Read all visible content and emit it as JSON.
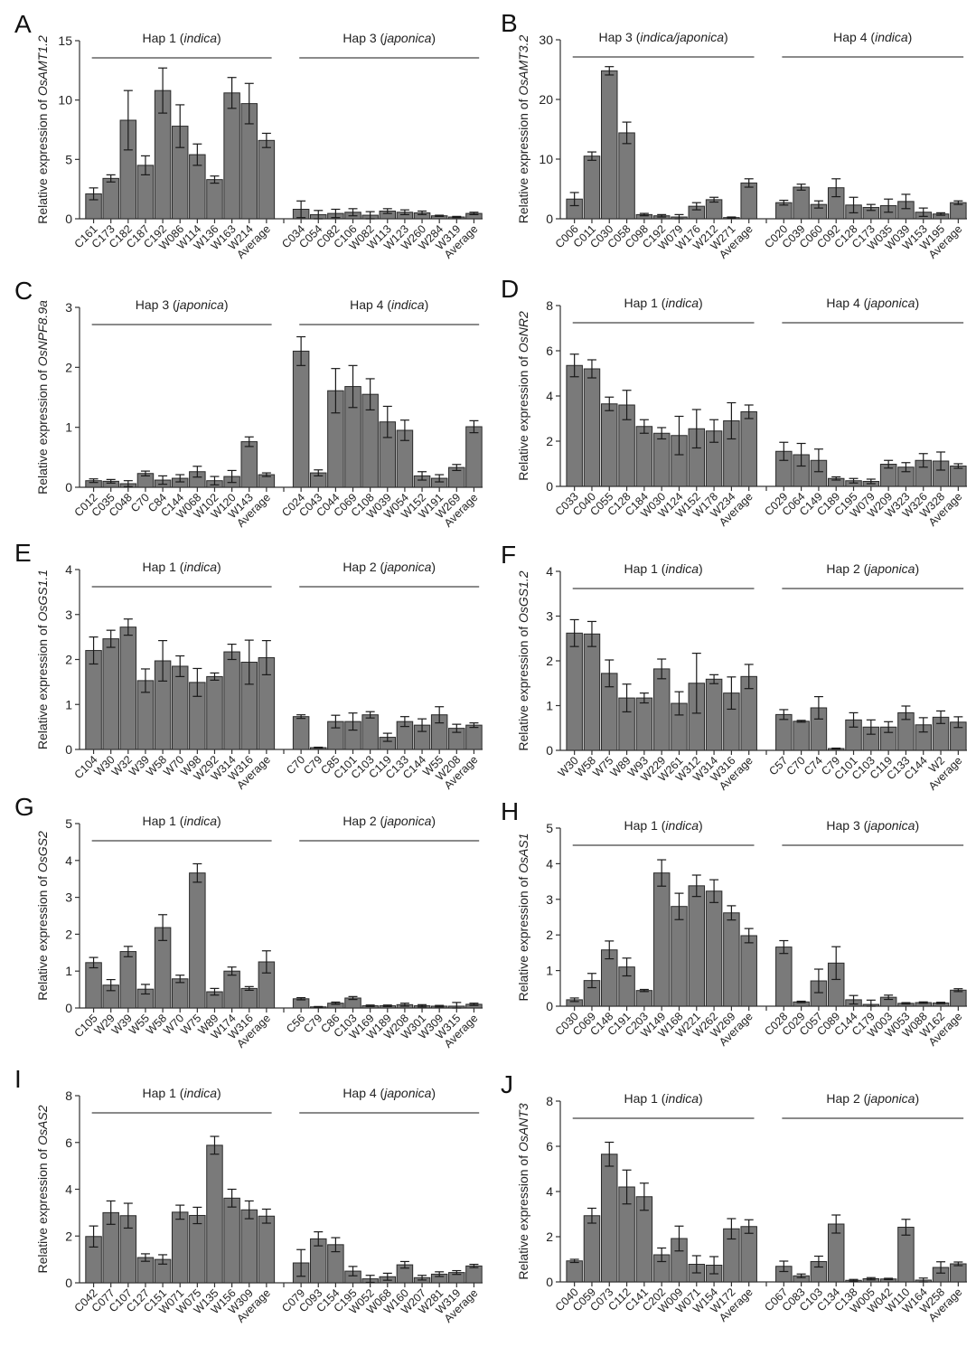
{
  "chart_data": [
    {
      "panel": "A",
      "type": "bar",
      "ylabel_prefix": "Relative expression of ",
      "gene": "OsAMT1.2",
      "yticks": [
        0,
        5,
        10,
        15
      ],
      "ylim": [
        0,
        15
      ],
      "groups": [
        {
          "label": "Hap 1",
          "subspecies": "indica",
          "categories": [
            "C161",
            "C173",
            "C182",
            "C187",
            "C192",
            "W086",
            "W114",
            "W136",
            "W163",
            "W214",
            "Average"
          ],
          "values": [
            2.1,
            3.4,
            8.3,
            4.5,
            10.8,
            7.8,
            5.4,
            3.3,
            10.6,
            9.7,
            6.6
          ],
          "errors": [
            0.5,
            0.3,
            2.5,
            0.8,
            1.9,
            1.8,
            0.9,
            0.3,
            1.3,
            1.7,
            0.6
          ]
        },
        {
          "label": "Hap 3",
          "subspecies": "japonica",
          "categories": [
            "C034",
            "C054",
            "C082",
            "C106",
            "W082",
            "W113",
            "W123",
            "W260",
            "W284",
            "W319",
            "Average"
          ],
          "values": [
            0.8,
            0.35,
            0.45,
            0.55,
            0.3,
            0.65,
            0.55,
            0.5,
            0.25,
            0.15,
            0.45
          ],
          "errors": [
            0.7,
            0.35,
            0.35,
            0.3,
            0.3,
            0.2,
            0.2,
            0.15,
            0.05,
            0.05,
            0.1
          ]
        }
      ]
    },
    {
      "panel": "B",
      "type": "bar",
      "ylabel_prefix": "Relative expression of ",
      "gene": "OsAMT3.2",
      "yticks": [
        0,
        10,
        20,
        30
      ],
      "ylim": [
        0,
        30
      ],
      "groups": [
        {
          "label": "Hap 3",
          "subspecies": "indica/japonica",
          "categories": [
            "C006",
            "C011",
            "C030",
            "C058",
            "C098",
            "C192",
            "W079",
            "W176",
            "W212",
            "W271",
            "Average"
          ],
          "values": [
            3.3,
            10.5,
            24.8,
            14.4,
            0.7,
            0.5,
            0.3,
            2.1,
            3.2,
            0.2,
            6.0
          ],
          "errors": [
            1.1,
            0.7,
            0.7,
            1.8,
            0.2,
            0.2,
            0.4,
            0.6,
            0.4,
            0.1,
            0.7
          ]
        },
        {
          "label": "Hap 4",
          "subspecies": "indica",
          "categories": [
            "C020",
            "C039",
            "C060",
            "C092",
            "C128",
            "C173",
            "W035",
            "W039",
            "W153",
            "W195",
            "Average"
          ],
          "values": [
            2.7,
            5.3,
            2.4,
            5.2,
            2.3,
            1.9,
            2.2,
            2.9,
            1.1,
            0.8,
            2.7
          ],
          "errors": [
            0.4,
            0.5,
            0.6,
            1.5,
            1.3,
            0.5,
            1.1,
            1.2,
            0.7,
            0.2,
            0.3
          ]
        }
      ]
    },
    {
      "panel": "C",
      "type": "bar",
      "ylabel_prefix": "Relative expression of ",
      "gene": "OsNPF8.9a",
      "yticks": [
        0,
        1,
        2,
        3
      ],
      "ylim": [
        0,
        3
      ],
      "groups": [
        {
          "label": "Hap 3",
          "subspecies": "japonica",
          "categories": [
            "C012",
            "C035",
            "C048",
            "C70",
            "C84",
            "C144",
            "W068",
            "W102",
            "W120",
            "W143",
            "Average"
          ],
          "values": [
            0.11,
            0.1,
            0.06,
            0.23,
            0.12,
            0.15,
            0.26,
            0.11,
            0.18,
            0.76,
            0.21
          ],
          "errors": [
            0.03,
            0.03,
            0.05,
            0.04,
            0.07,
            0.06,
            0.09,
            0.07,
            0.1,
            0.08,
            0.03
          ]
        },
        {
          "label": "Hap 4",
          "subspecies": "indica",
          "categories": [
            "C024",
            "C043",
            "C044",
            "C069",
            "C108",
            "W039",
            "W054",
            "W152",
            "W191",
            "W269",
            "Average"
          ],
          "values": [
            2.27,
            0.24,
            1.61,
            1.68,
            1.55,
            1.09,
            0.95,
            0.19,
            0.15,
            0.33,
            1.01
          ],
          "errors": [
            0.24,
            0.05,
            0.37,
            0.35,
            0.26,
            0.26,
            0.17,
            0.07,
            0.06,
            0.05,
            0.1
          ]
        }
      ]
    },
    {
      "panel": "D",
      "type": "bar",
      "ylabel_prefix": "Relative expression of ",
      "gene": "OsNR2",
      "yticks": [
        0,
        2,
        4,
        6,
        8
      ],
      "ylim": [
        0,
        8
      ],
      "groups": [
        {
          "label": "Hap 1",
          "subspecies": "indica",
          "categories": [
            "C033",
            "C040",
            "C055",
            "C128",
            "C184",
            "W030",
            "W124",
            "W152",
            "W178",
            "W234",
            "Average"
          ],
          "values": [
            5.35,
            5.2,
            3.65,
            3.6,
            2.65,
            2.35,
            2.25,
            2.55,
            2.45,
            2.9,
            3.3
          ],
          "errors": [
            0.5,
            0.4,
            0.3,
            0.65,
            0.3,
            0.25,
            0.85,
            0.85,
            0.5,
            0.8,
            0.3
          ]
        },
        {
          "label": "Hap 4",
          "subspecies": "japonica",
          "categories": [
            "C029",
            "C064",
            "C149",
            "C189",
            "C195",
            "W079",
            "W209",
            "W323",
            "W326",
            "W328",
            "Average"
          ],
          "values": [
            1.55,
            1.4,
            1.15,
            0.35,
            0.25,
            0.22,
            0.98,
            0.85,
            1.15,
            1.12,
            0.9
          ],
          "errors": [
            0.4,
            0.5,
            0.5,
            0.07,
            0.1,
            0.1,
            0.17,
            0.2,
            0.3,
            0.4,
            0.1
          ]
        }
      ]
    },
    {
      "panel": "E",
      "type": "bar",
      "ylabel_prefix": "Relative expression of ",
      "gene": "OsGS1.1",
      "yticks": [
        0,
        1,
        2,
        3,
        4
      ],
      "ylim": [
        0,
        4
      ],
      "groups": [
        {
          "label": "Hap 1",
          "subspecies": "indica",
          "categories": [
            "C104",
            "W30",
            "W32",
            "W39",
            "W58",
            "W70",
            "W98",
            "W292",
            "W314",
            "W316",
            "Average"
          ],
          "values": [
            2.2,
            2.46,
            2.72,
            1.53,
            1.97,
            1.85,
            1.49,
            1.62,
            2.17,
            1.94,
            2.04
          ],
          "errors": [
            0.3,
            0.19,
            0.18,
            0.26,
            0.45,
            0.23,
            0.31,
            0.08,
            0.17,
            0.49,
            0.38
          ]
        },
        {
          "label": "Hap 2",
          "subspecies": "japonica",
          "categories": [
            "C70",
            "C79",
            "C85",
            "C101",
            "C103",
            "C119",
            "C133",
            "C144",
            "W55",
            "W208",
            "Average"
          ],
          "values": [
            0.73,
            0.04,
            0.62,
            0.62,
            0.77,
            0.27,
            0.62,
            0.54,
            0.77,
            0.47,
            0.54
          ],
          "errors": [
            0.04,
            0.01,
            0.14,
            0.19,
            0.07,
            0.09,
            0.11,
            0.14,
            0.18,
            0.09,
            0.05
          ]
        }
      ]
    },
    {
      "panel": "F",
      "type": "bar",
      "ylabel_prefix": "Relative expression of ",
      "gene": "OsGS1.2",
      "yticks": [
        0,
        1,
        2,
        3,
        4
      ],
      "ylim": [
        0,
        4
      ],
      "groups": [
        {
          "label": "Hap 1",
          "subspecies": "indica",
          "categories": [
            "W30",
            "W58",
            "W75",
            "W89",
            "W93",
            "W229",
            "W261",
            "W312",
            "W314",
            "W316",
            "Average"
          ],
          "values": [
            2.62,
            2.6,
            1.72,
            1.17,
            1.17,
            1.82,
            1.05,
            1.5,
            1.59,
            1.28,
            1.65
          ],
          "errors": [
            0.3,
            0.28,
            0.3,
            0.31,
            0.11,
            0.22,
            0.26,
            0.67,
            0.1,
            0.36,
            0.27
          ]
        },
        {
          "label": "Hap 2",
          "subspecies": "japonica",
          "categories": [
            "C57",
            "C70",
            "C74",
            "C79",
            "C101",
            "C103",
            "C119",
            "C133",
            "C144",
            "W2",
            "Average"
          ],
          "values": [
            0.8,
            0.65,
            0.95,
            0.04,
            0.68,
            0.52,
            0.52,
            0.84,
            0.57,
            0.74,
            0.63
          ],
          "errors": [
            0.11,
            0.02,
            0.25,
            0.01,
            0.16,
            0.16,
            0.12,
            0.15,
            0.16,
            0.14,
            0.12
          ]
        }
      ]
    },
    {
      "panel": "G",
      "type": "bar",
      "ylabel_prefix": "Relative expression of ",
      "gene": "OsGS2",
      "yticks": [
        0,
        1,
        2,
        3,
        4,
        5
      ],
      "ylim": [
        0,
        5
      ],
      "groups": [
        {
          "label": "Hap 1",
          "subspecies": "indica",
          "categories": [
            "C105",
            "W29",
            "W39",
            "W55",
            "W58",
            "W70",
            "W75",
            "W89",
            "W174",
            "W316",
            "Average"
          ],
          "values": [
            1.23,
            0.62,
            1.53,
            0.51,
            2.18,
            0.79,
            3.66,
            0.44,
            1.0,
            0.53,
            1.25
          ],
          "errors": [
            0.14,
            0.15,
            0.14,
            0.13,
            0.35,
            0.1,
            0.25,
            0.09,
            0.11,
            0.05,
            0.3
          ]
        },
        {
          "label": "Hap 2",
          "subspecies": "japonica",
          "categories": [
            "C56",
            "C79",
            "C86",
            "C103",
            "W169",
            "W189",
            "W208",
            "W301",
            "W309",
            "W315",
            "Average"
          ],
          "values": [
            0.25,
            0.03,
            0.13,
            0.27,
            0.06,
            0.06,
            0.09,
            0.06,
            0.05,
            0.05,
            0.1
          ],
          "errors": [
            0.03,
            0.01,
            0.03,
            0.04,
            0.02,
            0.02,
            0.04,
            0.03,
            0.02,
            0.1,
            0.03
          ]
        }
      ]
    },
    {
      "panel": "H",
      "type": "bar",
      "ylabel_prefix": "Relative expression of ",
      "gene": "OsAS1",
      "yticks": [
        0,
        1,
        2,
        3,
        4,
        5
      ],
      "ylim": [
        0,
        5
      ],
      "groups": [
        {
          "label": "Hap 1",
          "subspecies": "indica",
          "categories": [
            "C030",
            "C069",
            "C148",
            "C191",
            "C203",
            "W149",
            "W168",
            "W221",
            "W262",
            "W269",
            "Average"
          ],
          "values": [
            0.18,
            0.72,
            1.58,
            1.1,
            0.44,
            3.74,
            2.8,
            3.38,
            3.23,
            2.62,
            1.98
          ],
          "errors": [
            0.05,
            0.2,
            0.25,
            0.25,
            0.03,
            0.37,
            0.37,
            0.3,
            0.32,
            0.2,
            0.2
          ]
        },
        {
          "label": "Hap 3",
          "subspecies": "japonica",
          "categories": [
            "C028",
            "C029",
            "C057",
            "C089",
            "C144",
            "C179",
            "W003",
            "W053",
            "W088",
            "W162",
            "Average"
          ],
          "values": [
            1.66,
            0.12,
            0.71,
            1.21,
            0.18,
            0.05,
            0.25,
            0.08,
            0.1,
            0.09,
            0.45
          ],
          "errors": [
            0.18,
            0.02,
            0.33,
            0.46,
            0.12,
            0.12,
            0.06,
            0.02,
            0.02,
            0.02,
            0.04
          ]
        }
      ]
    },
    {
      "panel": "I",
      "type": "bar",
      "ylabel_prefix": "Relative expression of ",
      "gene": "OsAS2",
      "yticks": [
        0,
        2,
        4,
        6,
        8
      ],
      "ylim": [
        0,
        8
      ],
      "groups": [
        {
          "label": "Hap 1",
          "subspecies": "indica",
          "categories": [
            "C042",
            "C077",
            "C107",
            "C127",
            "C151",
            "W071",
            "W075",
            "W135",
            "W156",
            "W309",
            "Average"
          ],
          "values": [
            1.98,
            3.0,
            2.87,
            1.08,
            1.0,
            3.02,
            2.88,
            5.88,
            3.62,
            3.12,
            2.85
          ],
          "errors": [
            0.45,
            0.5,
            0.53,
            0.16,
            0.2,
            0.3,
            0.35,
            0.38,
            0.38,
            0.38,
            0.3
          ]
        },
        {
          "label": "Hap 4",
          "subspecies": "japonica",
          "categories": [
            "C079",
            "C093",
            "C154",
            "C195",
            "W052",
            "W068",
            "W160",
            "W207",
            "W281",
            "W319",
            "Average"
          ],
          "values": [
            0.85,
            1.88,
            1.63,
            0.5,
            0.17,
            0.26,
            0.77,
            0.22,
            0.37,
            0.44,
            0.72
          ],
          "errors": [
            0.57,
            0.3,
            0.3,
            0.2,
            0.15,
            0.15,
            0.14,
            0.1,
            0.1,
            0.08,
            0.07
          ]
        }
      ]
    },
    {
      "panel": "J",
      "type": "bar",
      "ylabel_prefix": "Relative expression of ",
      "gene": "OsANT3",
      "yticks": [
        0,
        2,
        4,
        6,
        8
      ],
      "ylim": [
        0,
        8
      ],
      "groups": [
        {
          "label": "Hap 1",
          "subspecies": "indica",
          "categories": [
            "C040",
            "C059",
            "C073",
            "C112",
            "C141",
            "C202",
            "W009",
            "W071",
            "W154",
            "W172",
            "Average"
          ],
          "values": [
            0.93,
            2.93,
            5.65,
            4.2,
            3.77,
            1.2,
            1.92,
            0.78,
            0.74,
            2.35,
            2.45
          ],
          "errors": [
            0.07,
            0.33,
            0.53,
            0.75,
            0.6,
            0.3,
            0.55,
            0.38,
            0.38,
            0.45,
            0.3
          ]
        },
        {
          "label": "Hap 2",
          "subspecies": "japonica",
          "categories": [
            "C067",
            "C083",
            "C103",
            "C134",
            "C138",
            "W005",
            "W042",
            "W110",
            "W164",
            "W258",
            "Average"
          ],
          "values": [
            0.69,
            0.27,
            0.9,
            2.56,
            0.07,
            0.14,
            0.13,
            2.42,
            0.08,
            0.64,
            0.8
          ],
          "errors": [
            0.23,
            0.08,
            0.24,
            0.4,
            0.04,
            0.05,
            0.03,
            0.35,
            0.09,
            0.25,
            0.08
          ]
        }
      ]
    }
  ]
}
